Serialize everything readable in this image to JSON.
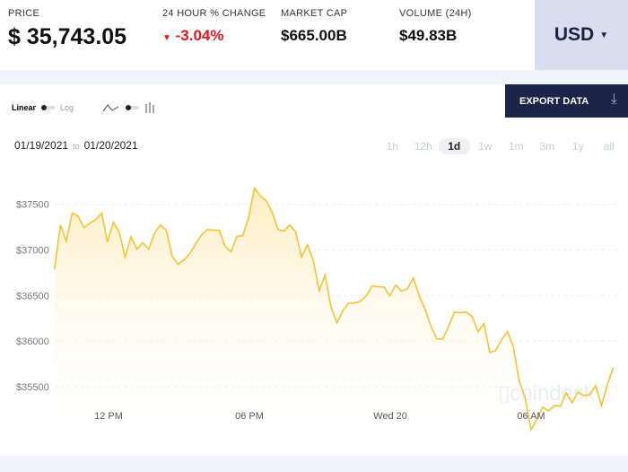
{
  "stats": [
    {
      "label": "PRICE",
      "value": "$ 35,743.05"
    },
    {
      "label": "24 HOUR % CHANGE",
      "value": "-3.04%"
    },
    {
      "label": "MARKET CAP",
      "value": "$665.00B"
    },
    {
      "label": "VOLUME (24H)",
      "value": "$49.83B"
    }
  ],
  "change_icon": "triangle-down-icon",
  "currency": "USD",
  "export_label": "EXPORT DATA",
  "scale": {
    "linear": "Linear",
    "log": "Log"
  },
  "date_from": "01/19/2021",
  "date_sep": "to",
  "date_to": "01/20/2021",
  "ranges": [
    "1h",
    "12h",
    "1d",
    "1w",
    "1m",
    "3m",
    "1y",
    "all"
  ],
  "active_range": "1d",
  "watermark": "coindesk",
  "colors": {
    "line": "#f7c230",
    "negative": "#e8141c",
    "accent": "#1a2547"
  },
  "chart_data": {
    "type": "area",
    "x_start_hour": 9.7,
    "x_end_hour": 33.5,
    "xticks": [
      {
        "h": 12,
        "label": "12 PM"
      },
      {
        "h": 18,
        "label": "06 PM"
      },
      {
        "h": 24,
        "label": "Wed 20"
      },
      {
        "h": 30,
        "label": "06 AM"
      }
    ],
    "yticks": [
      {
        "v": 37500,
        "label": "$37500"
      },
      {
        "v": 37000,
        "label": "$37000"
      },
      {
        "v": 36500,
        "label": "$36500"
      },
      {
        "v": 36000,
        "label": "$36000"
      },
      {
        "v": 35500,
        "label": "$35500"
      }
    ],
    "ylim": [
      34920,
      37870
    ],
    "values": [
      36790,
      37274,
      37097,
      37402,
      37372,
      37244,
      37293,
      37333,
      37402,
      37087,
      37303,
      37195,
      36920,
      37146,
      37008,
      37077,
      37008,
      37185,
      37274,
      37215,
      36930,
      36841,
      36890,
      36959,
      37067,
      37165,
      37224,
      37215,
      37215,
      37038,
      36979,
      37146,
      37156,
      37352,
      37677,
      37589,
      37539,
      37411,
      37224,
      37205,
      37274,
      37195,
      36920,
      37057,
      36880,
      36555,
      36723,
      36378,
      36201,
      36329,
      36418,
      36418,
      36437,
      36496,
      36605,
      36595,
      36595,
      36496,
      36614,
      36546,
      36575,
      36693,
      36496,
      36349,
      36162,
      36024,
      36024,
      36162,
      36319,
      36309,
      36319,
      36270,
      36103,
      36191,
      35876,
      35896,
      36014,
      36103,
      35945,
      35561,
      35384,
      35030,
      35138,
      35276,
      35236,
      35295,
      35285,
      35433,
      35325,
      35443,
      35404,
      35413,
      35512,
      35295,
      35522,
      35709
    ]
  }
}
